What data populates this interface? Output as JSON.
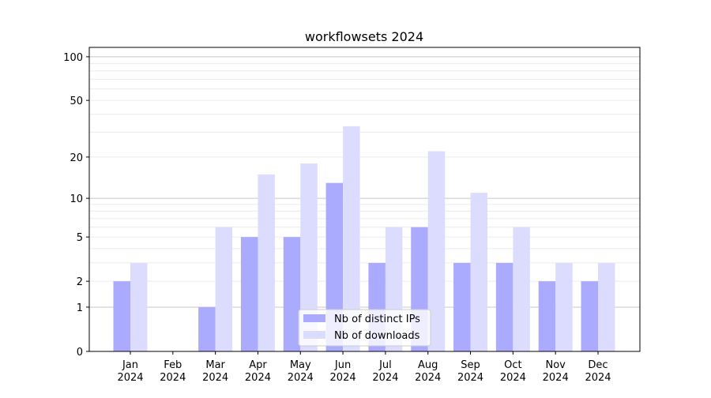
{
  "chart_data": {
    "type": "bar",
    "title": "workflowsets 2024",
    "xlabel": "",
    "ylabel": "",
    "yscale": "log10(1+y)",
    "ylim": [
      0,
      116
    ],
    "yticks": [
      0,
      1,
      2,
      5,
      10,
      20,
      50,
      100
    ],
    "grid": true,
    "legend_position": "bottom-center",
    "categories": [
      "Jan\n2024",
      "Feb\n2024",
      "Mar\n2024",
      "Apr\n2024",
      "May\n2024",
      "Jun\n2024",
      "Jul\n2024",
      "Aug\n2024",
      "Sep\n2024",
      "Oct\n2024",
      "Nov\n2024",
      "Dec\n2024"
    ],
    "series": [
      {
        "name": "Nb of distinct IPs",
        "color": "#aaaaff",
        "values": [
          2,
          0,
          1,
          5,
          5,
          13,
          3,
          6,
          3,
          3,
          2,
          2
        ]
      },
      {
        "name": "Nb of downloads",
        "color": "#dcdcff",
        "values": [
          3,
          0,
          6,
          15,
          18,
          33,
          6,
          22,
          11,
          6,
          3,
          3
        ]
      }
    ]
  }
}
